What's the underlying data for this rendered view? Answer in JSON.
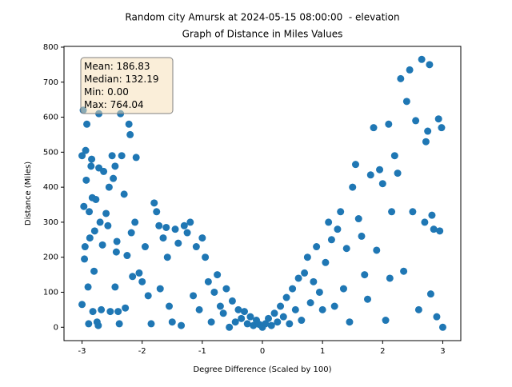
{
  "chart_data": {
    "type": "scatter",
    "title": "Random city Amursk at 2024-05-15 08:00:00  - elevation",
    "subtitle": "Graph of Distance in Miles Values",
    "xlabel": "Degree Difference (Scaled by 100)",
    "ylabel": "Distance (Miles)",
    "annotations": [
      "Mean: 186.83",
      "Median: 132.19",
      "Min: 0.00",
      "Max: 764.04"
    ],
    "color": "#1f77b4",
    "xlim": [
      -3.3,
      3.3
    ],
    "ylim": [
      -38.2,
      802.2
    ],
    "xticks": [
      -3,
      -2,
      -1,
      0,
      1,
      2,
      3
    ],
    "yticks": [
      0,
      100,
      200,
      300,
      400,
      500,
      600,
      700,
      800
    ],
    "x": [
      -3.0,
      -3.0,
      -2.98,
      -2.97,
      -2.96,
      -2.95,
      -2.94,
      -2.93,
      -2.92,
      -2.9,
      -2.89,
      -2.88,
      -2.87,
      -2.85,
      -2.84,
      -2.83,
      -2.82,
      -2.8,
      -2.79,
      -2.77,
      -2.75,
      -2.73,
      -2.72,
      -2.72,
      -2.7,
      -2.68,
      -2.66,
      -2.64,
      -2.6,
      -2.57,
      -2.55,
      -2.53,
      -2.5,
      -2.48,
      -2.45,
      -2.45,
      -2.43,
      -2.42,
      -2.4,
      -2.38,
      -2.36,
      -2.34,
      -2.3,
      -2.28,
      -2.25,
      -2.22,
      -2.2,
      -2.18,
      -2.16,
      -2.12,
      -2.1,
      -2.05,
      -2.0,
      -1.95,
      -1.9,
      -1.85,
      -1.8,
      -1.76,
      -1.72,
      -1.7,
      -1.65,
      -1.6,
      -1.58,
      -1.55,
      -1.5,
      -1.45,
      -1.4,
      -1.35,
      -1.3,
      -1.25,
      -1.2,
      -1.15,
      -1.1,
      -1.05,
      -1.0,
      -0.95,
      -0.9,
      -0.85,
      -0.8,
      -0.75,
      -0.7,
      -0.65,
      -0.6,
      -0.55,
      -0.5,
      -0.45,
      -0.4,
      -0.35,
      -0.3,
      -0.25,
      -0.2,
      -0.15,
      -0.1,
      -0.05,
      0,
      0.05,
      0.1,
      0.15,
      0.2,
      0.25,
      0.3,
      0.35,
      0.4,
      0.45,
      0.5,
      0.55,
      0.6,
      0.65,
      0.7,
      0.75,
      0.8,
      0.85,
      0.9,
      0.95,
      1.0,
      1.05,
      1.1,
      1.15,
      1.2,
      1.25,
      1.3,
      1.35,
      1.4,
      1.45,
      1.5,
      1.55,
      1.6,
      1.65,
      1.7,
      1.75,
      1.8,
      1.85,
      1.9,
      1.95,
      2.0,
      2.05,
      2.1,
      2.12,
      2.15,
      2.2,
      2.25,
      2.3,
      2.35,
      2.4,
      2.45,
      2.5,
      2.55,
      2.6,
      2.65,
      2.7,
      2.72,
      2.75,
      2.78,
      2.8,
      2.82,
      2.85,
      2.9,
      2.93,
      2.95,
      2.98,
      3.0
    ],
    "values": [
      65,
      490,
      620,
      345,
      195,
      230,
      505,
      420,
      580,
      115,
      10,
      330,
      255,
      460,
      480,
      370,
      45,
      160,
      275,
      365,
      15,
      5,
      610,
      455,
      300,
      50,
      235,
      445,
      325,
      290,
      400,
      45,
      490,
      425,
      460,
      115,
      215,
      245,
      45,
      10,
      610,
      490,
      380,
      55,
      205,
      580,
      550,
      270,
      145,
      300,
      485,
      155,
      130,
      230,
      90,
      10,
      355,
      330,
      290,
      110,
      255,
      285,
      200,
      60,
      15,
      280,
      240,
      5,
      290,
      270,
      300,
      90,
      230,
      50,
      255,
      200,
      130,
      15,
      100,
      150,
      60,
      40,
      110,
      0,
      75,
      15,
      50,
      25,
      45,
      10,
      30,
      5,
      20,
      8,
      0,
      10,
      25,
      5,
      40,
      15,
      60,
      30,
      85,
      10,
      110,
      50,
      140,
      20,
      155,
      200,
      70,
      130,
      230,
      100,
      50,
      185,
      300,
      250,
      60,
      280,
      330,
      110,
      225,
      15,
      400,
      465,
      310,
      260,
      150,
      80,
      435,
      570,
      220,
      450,
      410,
      20,
      580,
      140,
      330,
      490,
      440,
      710,
      160,
      645,
      735,
      330,
      590,
      50,
      765,
      300,
      530,
      560,
      750,
      95,
      320,
      280,
      30,
      595,
      275,
      570,
      0
    ]
  }
}
